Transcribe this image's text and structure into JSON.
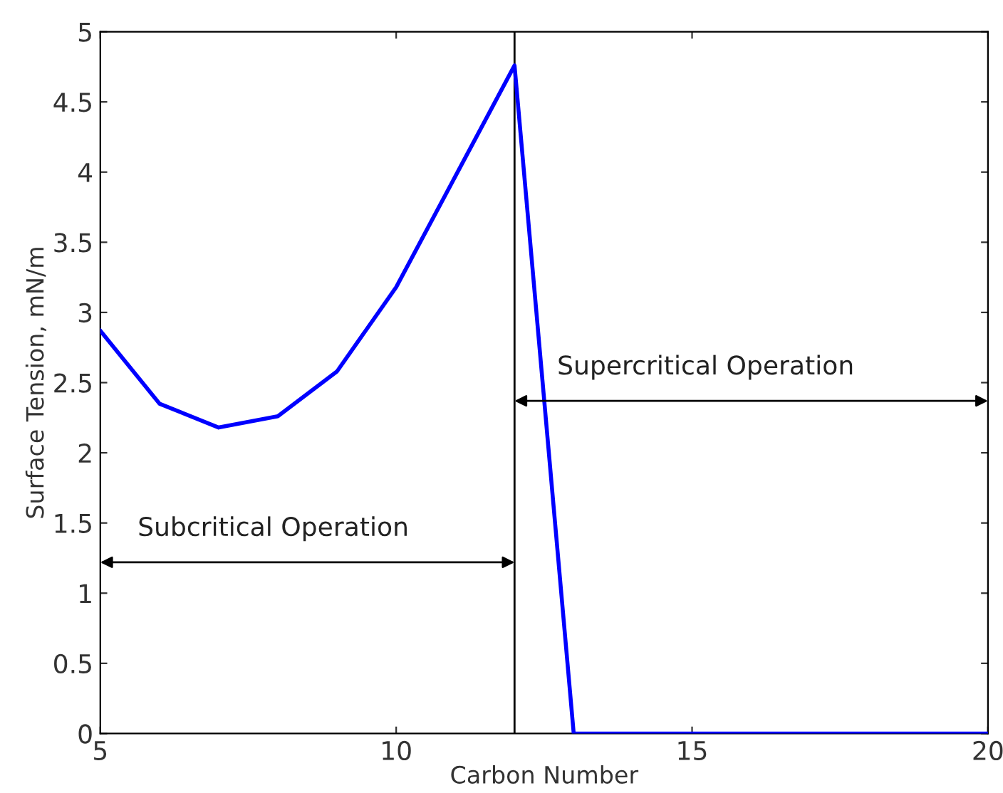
{
  "chart_data": {
    "type": "line",
    "xlabel": "Carbon Number",
    "ylabel": "Surface Tension, mN/m",
    "x": [
      5,
      6,
      7,
      8,
      9,
      10,
      11,
      12,
      13,
      14,
      15,
      16,
      17,
      18,
      19,
      20
    ],
    "series": [
      {
        "color": "#0000ff",
        "values": [
          2.87,
          2.35,
          2.18,
          2.26,
          2.58,
          3.18,
          3.97,
          4.76,
          0,
          0,
          0,
          0,
          0,
          0,
          0,
          0
        ]
      }
    ],
    "xlim": [
      5,
      20
    ],
    "xticks": [
      5,
      10,
      15,
      20
    ],
    "ylim": [
      0,
      5
    ],
    "yticks": [
      0,
      0.5,
      1,
      1.5,
      2,
      2.5,
      3,
      3.5,
      4,
      4.5,
      5
    ],
    "grid": false,
    "legend": false,
    "marker": "none",
    "line_style": "solid",
    "ref_lines": [
      {
        "axis": "x",
        "value": 12,
        "color": "#000000"
      }
    ],
    "annotations": [
      "Subcritical Operation",
      "Supercritical Operation"
    ]
  }
}
